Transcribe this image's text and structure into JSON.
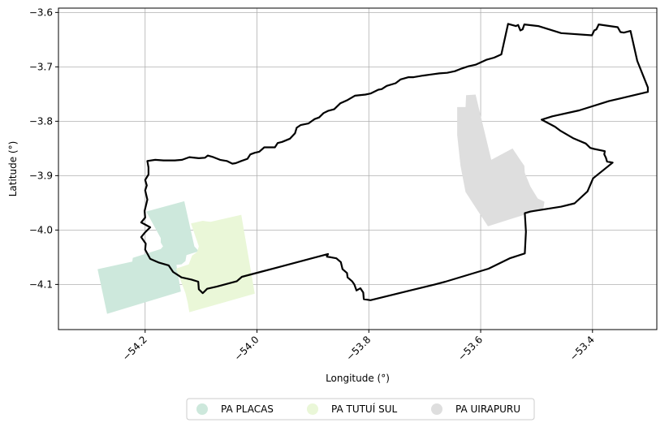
{
  "chart_data": {
    "type": "map",
    "xlabel": "Longitude (°)",
    "ylabel": "Latitude (°)",
    "xlim": [
      -54.355,
      -53.285
    ],
    "ylim": [
      -4.183,
      -3.592
    ],
    "grid": true,
    "legend_position": "bottom-center",
    "x_ticks": [
      {
        "value": -54.2,
        "label": "−54.2"
      },
      {
        "value": -54.0,
        "label": "−54.0"
      },
      {
        "value": -53.8,
        "label": "−53.8"
      },
      {
        "value": -53.6,
        "label": "−53.6"
      },
      {
        "value": -53.4,
        "label": "−53.4"
      }
    ],
    "y_ticks": [
      {
        "value": -3.6,
        "label": "−3.6"
      },
      {
        "value": -3.7,
        "label": "−3.7"
      },
      {
        "value": -3.8,
        "label": "−3.8"
      },
      {
        "value": -3.9,
        "label": "−3.9"
      },
      {
        "value": -4.0,
        "label": "−4.0"
      },
      {
        "value": -4.1,
        "label": "−4.1"
      }
    ],
    "series": [
      {
        "name": "PA PLACAS",
        "color": "#cde8dc",
        "polygon": [
          [
            -54.285,
            -4.072
          ],
          [
            -54.223,
            -4.058
          ],
          [
            -54.222,
            -4.051
          ],
          [
            -54.172,
            -4.035
          ],
          [
            -54.168,
            -4.03
          ],
          [
            -54.172,
            -4.023
          ],
          [
            -54.172,
            -4.015
          ],
          [
            -54.198,
            -3.966
          ],
          [
            -54.13,
            -3.947
          ],
          [
            -54.112,
            -4.03
          ],
          [
            -54.104,
            -4.039
          ],
          [
            -54.126,
            -4.046
          ],
          [
            -54.128,
            -4.057
          ],
          [
            -54.135,
            -4.063
          ],
          [
            -54.144,
            -4.064
          ],
          [
            -54.136,
            -4.113
          ],
          [
            -54.268,
            -4.154
          ]
        ]
      },
      {
        "name": "PA TUTUÍ SUL",
        "color": "#eaf7d8",
        "polygon": [
          [
            -54.118,
            -3.988
          ],
          [
            -54.097,
            -3.983
          ],
          [
            -54.083,
            -3.985
          ],
          [
            -54.028,
            -3.972
          ],
          [
            -54.004,
            -4.117
          ],
          [
            -54.121,
            -4.151
          ],
          [
            -54.124,
            -4.133
          ],
          [
            -54.128,
            -4.116
          ],
          [
            -54.14,
            -4.083
          ],
          [
            -54.145,
            -4.071
          ],
          [
            -54.122,
            -4.063
          ],
          [
            -54.116,
            -4.047
          ],
          [
            -54.107,
            -4.04
          ],
          [
            -54.104,
            -4.03
          ]
        ]
      },
      {
        "name": "PA UIRAPURU",
        "color": "#dedede",
        "polygon": [
          [
            -53.642,
            -3.774
          ],
          [
            -53.627,
            -3.774
          ],
          [
            -53.626,
            -3.752
          ],
          [
            -53.609,
            -3.751
          ],
          [
            -53.581,
            -3.871
          ],
          [
            -53.543,
            -3.85
          ],
          [
            -53.528,
            -3.873
          ],
          [
            -53.522,
            -3.882
          ],
          [
            -53.521,
            -3.895
          ],
          [
            -53.511,
            -3.92
          ],
          [
            -53.498,
            -3.942
          ],
          [
            -53.486,
            -3.948
          ],
          [
            -53.488,
            -3.961
          ],
          [
            -53.587,
            -3.993
          ],
          [
            -53.605,
            -3.965
          ],
          [
            -53.627,
            -3.93
          ],
          [
            -53.636,
            -3.882
          ],
          [
            -53.642,
            -3.825
          ]
        ]
      }
    ],
    "outline": [
      [
        -53.551,
        -3.621
      ],
      [
        -53.537,
        -3.625
      ],
      [
        -53.533,
        -3.623
      ],
      [
        -53.529,
        -3.633
      ],
      [
        -53.525,
        -3.631
      ],
      [
        -53.522,
        -3.622
      ],
      [
        -53.497,
        -3.625
      ],
      [
        -53.456,
        -3.638
      ],
      [
        -53.401,
        -3.642
      ],
      [
        -53.397,
        -3.633
      ],
      [
        -53.393,
        -3.631
      ],
      [
        -53.389,
        -3.622
      ],
      [
        -53.355,
        -3.627
      ],
      [
        -53.35,
        -3.636
      ],
      [
        -53.344,
        -3.637
      ],
      [
        -53.332,
        -3.634
      ],
      [
        -53.32,
        -3.689
      ],
      [
        -53.301,
        -3.738
      ],
      [
        -53.301,
        -3.746
      ],
      [
        -53.371,
        -3.763
      ],
      [
        -53.424,
        -3.78
      ],
      [
        -53.472,
        -3.791
      ],
      [
        -53.491,
        -3.797
      ],
      [
        -53.467,
        -3.81
      ],
      [
        -53.458,
        -3.817
      ],
      [
        -53.435,
        -3.831
      ],
      [
        -53.412,
        -3.841
      ],
      [
        -53.404,
        -3.849
      ],
      [
        -53.397,
        -3.851
      ],
      [
        -53.378,
        -3.855
      ],
      [
        -53.379,
        -3.861
      ],
      [
        -53.376,
        -3.867
      ],
      [
        -53.374,
        -3.874
      ],
      [
        -53.364,
        -3.876
      ],
      [
        -53.399,
        -3.905
      ],
      [
        -53.409,
        -3.929
      ],
      [
        -53.432,
        -3.951
      ],
      [
        -53.456,
        -3.957
      ],
      [
        -53.511,
        -3.966
      ],
      [
        -53.521,
        -3.969
      ],
      [
        -53.519,
        -4.003
      ],
      [
        -53.521,
        -4.043
      ],
      [
        -53.548,
        -4.052
      ],
      [
        -53.586,
        -4.071
      ],
      [
        -53.663,
        -4.095
      ],
      [
        -53.682,
        -4.1
      ],
      [
        -53.797,
        -4.129
      ],
      [
        -53.809,
        -4.127
      ],
      [
        -53.81,
        -4.115
      ],
      [
        -53.815,
        -4.107
      ],
      [
        -53.822,
        -4.111
      ],
      [
        -53.826,
        -4.1
      ],
      [
        -53.83,
        -4.094
      ],
      [
        -53.838,
        -4.087
      ],
      [
        -53.839,
        -4.079
      ],
      [
        -53.847,
        -4.072
      ],
      [
        -53.85,
        -4.059
      ],
      [
        -53.858,
        -4.052
      ],
      [
        -53.868,
        -4.05
      ],
      [
        -53.875,
        -4.049
      ],
      [
        -53.873,
        -4.044
      ],
      [
        -53.968,
        -4.07
      ],
      [
        -53.994,
        -4.077
      ],
      [
        -54.027,
        -4.086
      ],
      [
        -54.036,
        -4.094
      ],
      [
        -54.072,
        -4.104
      ],
      [
        -54.089,
        -4.108
      ],
      [
        -54.097,
        -4.116
      ],
      [
        -54.104,
        -4.109
      ],
      [
        -54.105,
        -4.095
      ],
      [
        -54.117,
        -4.091
      ],
      [
        -54.135,
        -4.087
      ],
      [
        -54.15,
        -4.077
      ],
      [
        -54.158,
        -4.065
      ],
      [
        -54.175,
        -4.06
      ],
      [
        -54.191,
        -4.053
      ],
      [
        -54.2,
        -4.036
      ],
      [
        -54.199,
        -4.025
      ],
      [
        -54.207,
        -4.013
      ],
      [
        -54.2,
        -4.004
      ],
      [
        -54.191,
        -3.995
      ],
      [
        -54.207,
        -3.986
      ],
      [
        -54.2,
        -3.977
      ],
      [
        -54.201,
        -3.965
      ],
      [
        -54.196,
        -3.944
      ],
      [
        -54.2,
        -3.927
      ],
      [
        -54.197,
        -3.918
      ],
      [
        -54.2,
        -3.908
      ],
      [
        -54.194,
        -3.898
      ],
      [
        -54.194,
        -3.885
      ],
      [
        -54.196,
        -3.873
      ],
      [
        -54.182,
        -3.871
      ],
      [
        -54.167,
        -3.872
      ],
      [
        -54.147,
        -3.872
      ],
      [
        -54.134,
        -3.871
      ],
      [
        -54.121,
        -3.866
      ],
      [
        -54.104,
        -3.868
      ],
      [
        -54.093,
        -3.867
      ],
      [
        -54.088,
        -3.863
      ],
      [
        -54.078,
        -3.866
      ],
      [
        -54.066,
        -3.871
      ],
      [
        -54.054,
        -3.873
      ],
      [
        -54.044,
        -3.878
      ],
      [
        -54.038,
        -3.877
      ],
      [
        -54.028,
        -3.873
      ],
      [
        -54.017,
        -3.869
      ],
      [
        -54.012,
        -3.861
      ],
      [
        -54.004,
        -3.858
      ],
      [
        -53.996,
        -3.856
      ],
      [
        -53.987,
        -3.848
      ],
      [
        -53.968,
        -3.848
      ],
      [
        -53.963,
        -3.84
      ],
      [
        -53.955,
        -3.838
      ],
      [
        -53.941,
        -3.832
      ],
      [
        -53.932,
        -3.822
      ],
      [
        -53.929,
        -3.812
      ],
      [
        -53.922,
        -3.807
      ],
      [
        -53.908,
        -3.804
      ],
      [
        -53.897,
        -3.796
      ],
      [
        -53.889,
        -3.793
      ],
      [
        -53.881,
        -3.785
      ],
      [
        -53.873,
        -3.781
      ],
      [
        -53.862,
        -3.778
      ],
      [
        -53.851,
        -3.767
      ],
      [
        -53.838,
        -3.761
      ],
      [
        -53.825,
        -3.753
      ],
      [
        -53.806,
        -3.751
      ],
      [
        -53.797,
        -3.749
      ],
      [
        -53.783,
        -3.742
      ],
      [
        -53.777,
        -3.741
      ],
      [
        -53.768,
        -3.735
      ],
      [
        -53.752,
        -3.73
      ],
      [
        -53.743,
        -3.723
      ],
      [
        -53.729,
        -3.719
      ],
      [
        -53.72,
        -3.719
      ],
      [
        -53.703,
        -3.716
      ],
      [
        -53.688,
        -3.714
      ],
      [
        -53.674,
        -3.712
      ],
      [
        -53.66,
        -3.711
      ],
      [
        -53.646,
        -3.708
      ],
      [
        -53.634,
        -3.703
      ],
      [
        -53.622,
        -3.699
      ],
      [
        -53.609,
        -3.696
      ],
      [
        -53.59,
        -3.687
      ],
      [
        -53.576,
        -3.683
      ],
      [
        -53.563,
        -3.677
      ],
      [
        -53.551,
        -3.621
      ]
    ],
    "legend": [
      {
        "label": "PA PLACAS",
        "color": "#cde8dc"
      },
      {
        "label": "PA TUTUÍ SUL",
        "color": "#eaf7d8"
      },
      {
        "label": "PA UIRAPURU",
        "color": "#dedede"
      }
    ]
  }
}
